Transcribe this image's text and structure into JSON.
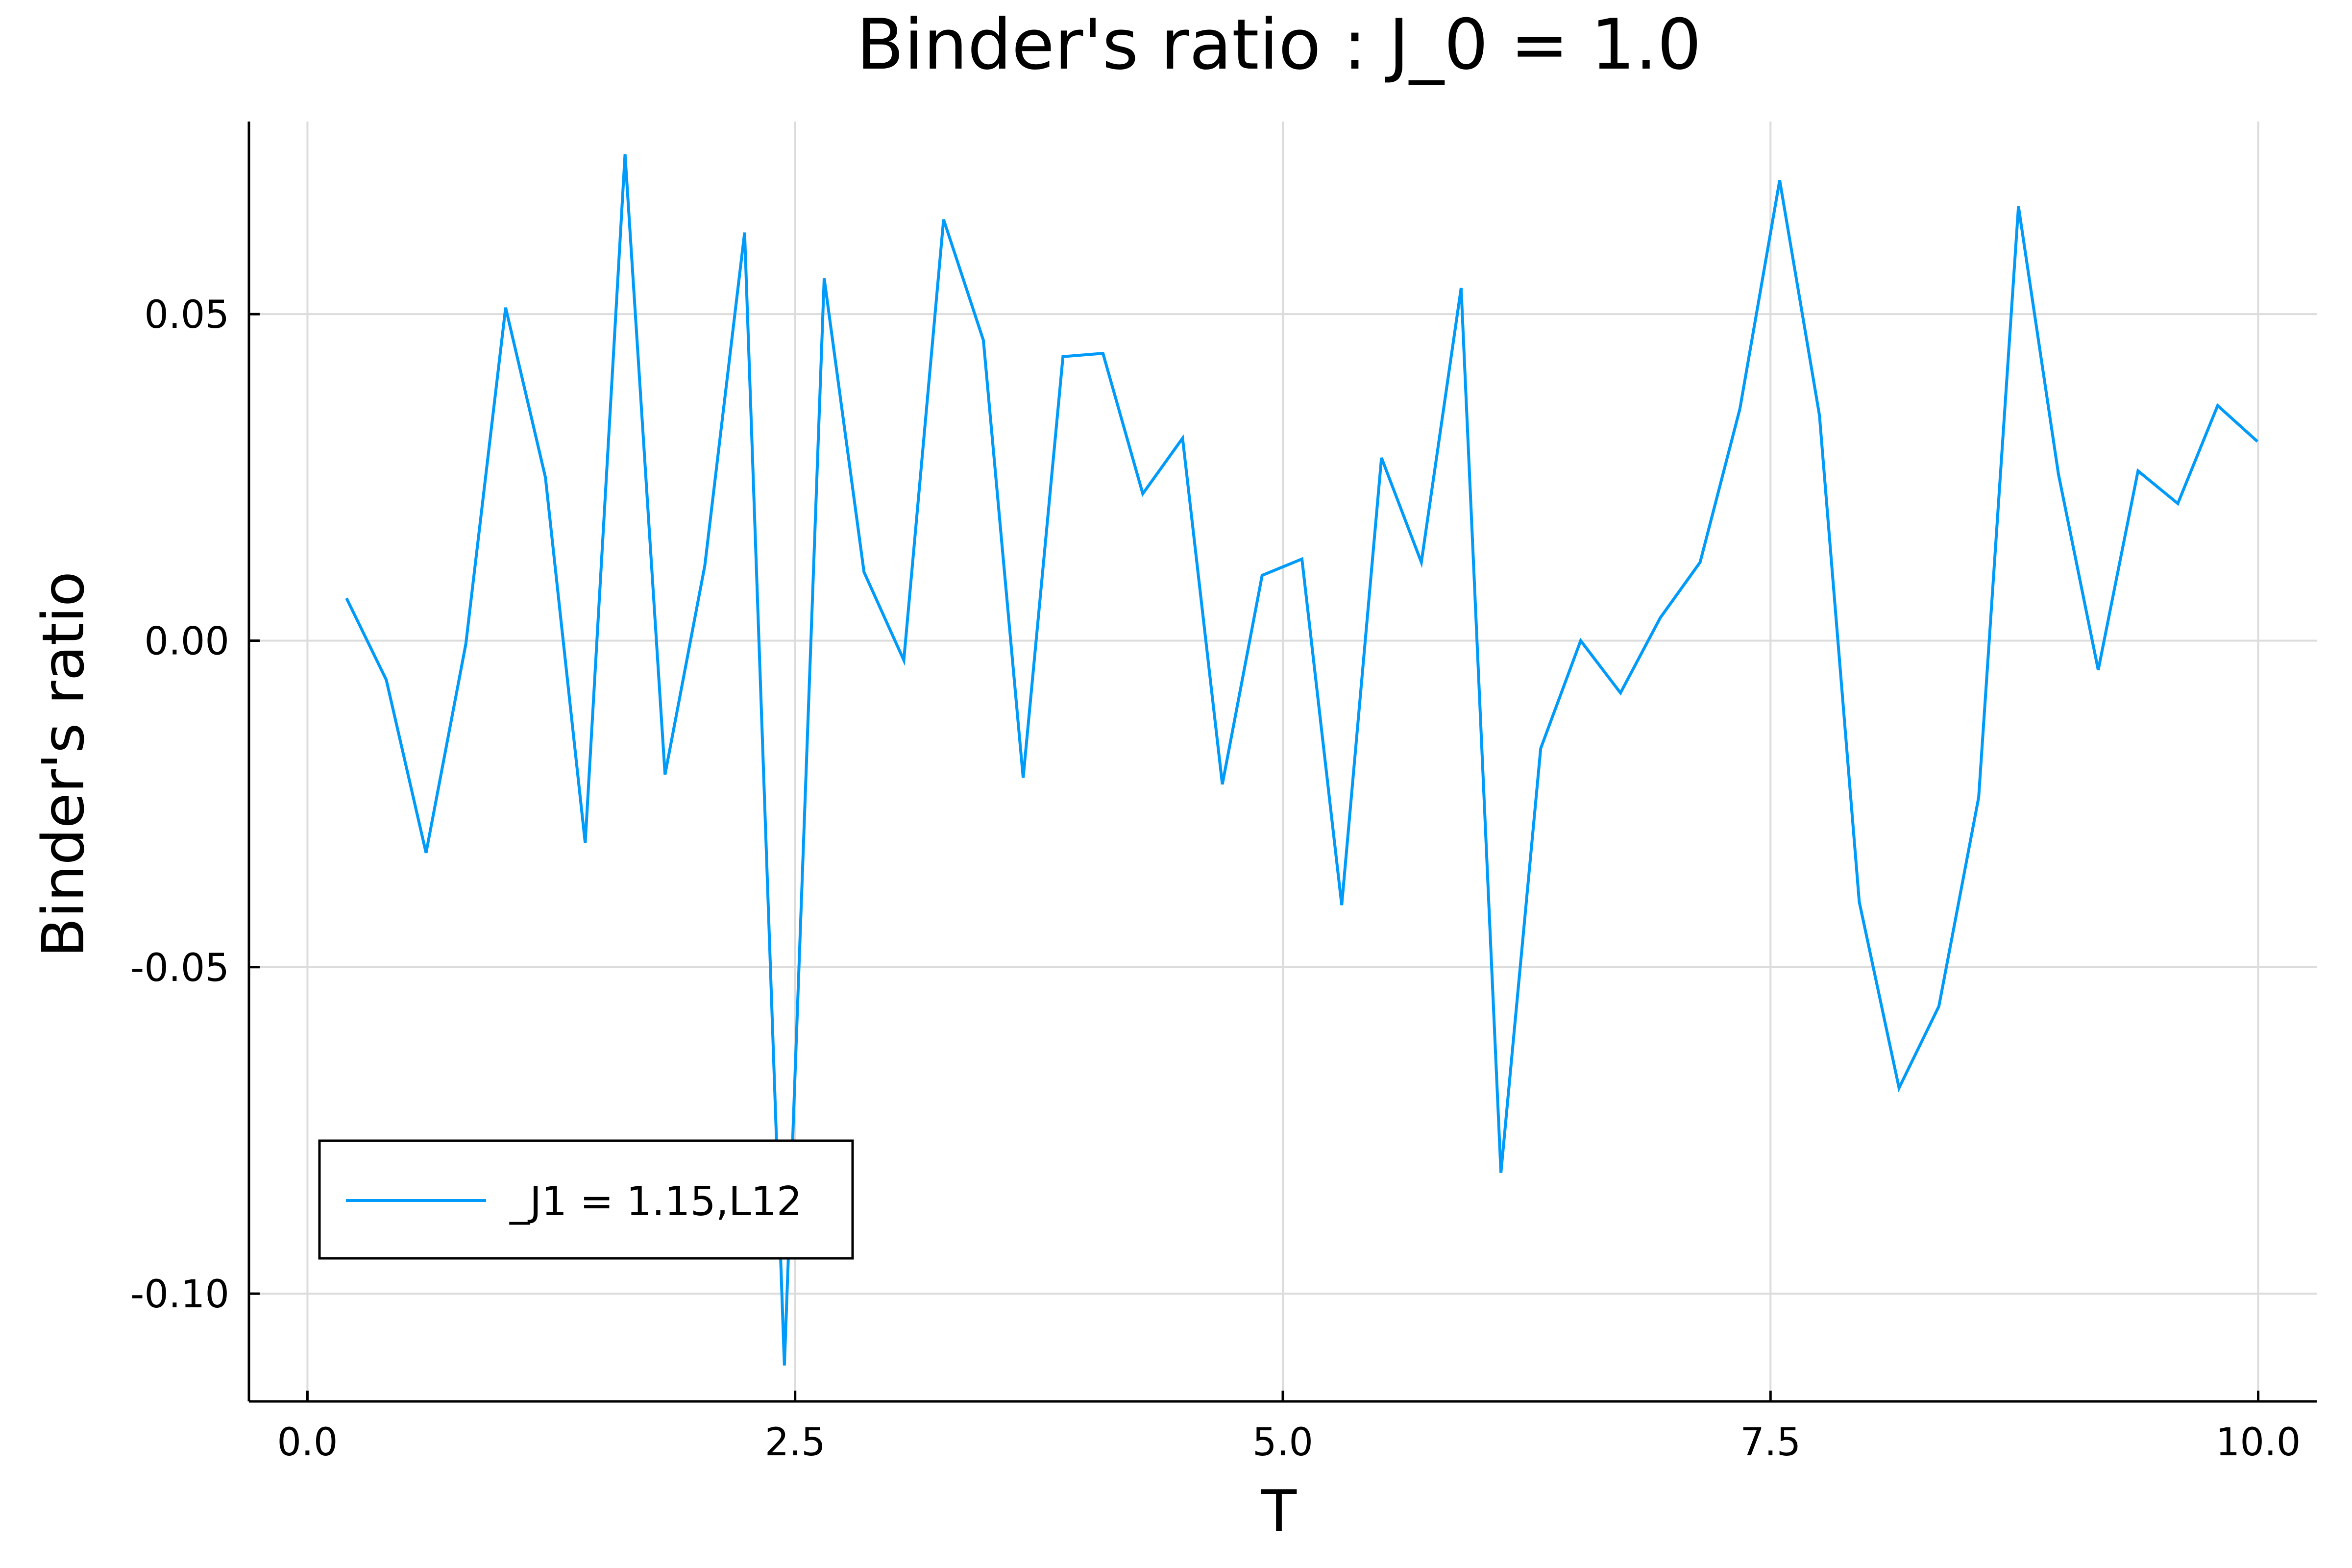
{
  "chart_data": {
    "type": "line",
    "title": "Binder's ratio : J_0 = 1.0",
    "xlabel": "T",
    "ylabel": "Binder's ratio",
    "xlim": [
      -0.3,
      10.3
    ],
    "ylim": [
      -0.1165,
      0.0795
    ],
    "xticks": [
      0.0,
      2.5,
      5.0,
      7.5,
      10.0
    ],
    "xtick_labels": [
      "0.0",
      "2.5",
      "5.0",
      "7.5",
      "10.0"
    ],
    "yticks": [
      -0.1,
      -0.05,
      0.0,
      0.05
    ],
    "ytick_labels": [
      "-0.10",
      "-0.05",
      "0.00",
      "0.05"
    ],
    "grid": true,
    "legend_position": "bottom-left",
    "series": [
      {
        "name": "_J1 = 1.15,L12",
        "color": "#009af9",
        "x": [
          0.2,
          0.404,
          0.608,
          0.812,
          1.016,
          1.22,
          1.424,
          1.628,
          1.833,
          2.037,
          2.241,
          2.445,
          2.649,
          2.853,
          3.057,
          3.261,
          3.465,
          3.669,
          3.873,
          4.078,
          4.282,
          4.486,
          4.69,
          4.894,
          5.098,
          5.302,
          5.506,
          5.71,
          5.914,
          6.118,
          6.322,
          6.527,
          6.731,
          6.935,
          7.139,
          7.343,
          7.547,
          7.751,
          7.955,
          8.159,
          8.363,
          8.567,
          8.771,
          8.976,
          9.18,
          9.384,
          9.588,
          9.792,
          9.996
        ],
        "y": [
          0.0065,
          -0.006,
          -0.0325,
          -0.0005,
          0.051,
          0.025,
          -0.031,
          0.0745,
          -0.0205,
          0.0115,
          0.0625,
          -0.111,
          0.0555,
          0.0105,
          -0.003,
          0.0645,
          0.046,
          -0.021,
          0.0435,
          0.044,
          0.0225,
          0.031,
          -0.022,
          0.01,
          0.0125,
          -0.0405,
          0.028,
          0.012,
          0.054,
          -0.0815,
          -0.0165,
          0.0,
          -0.008,
          0.0035,
          0.012,
          0.0355,
          0.0705,
          0.0345,
          -0.04,
          -0.0685,
          -0.056,
          -0.024,
          0.0665,
          0.0255,
          -0.0045,
          0.026,
          0.021,
          0.036,
          0.0305
        ]
      }
    ]
  }
}
